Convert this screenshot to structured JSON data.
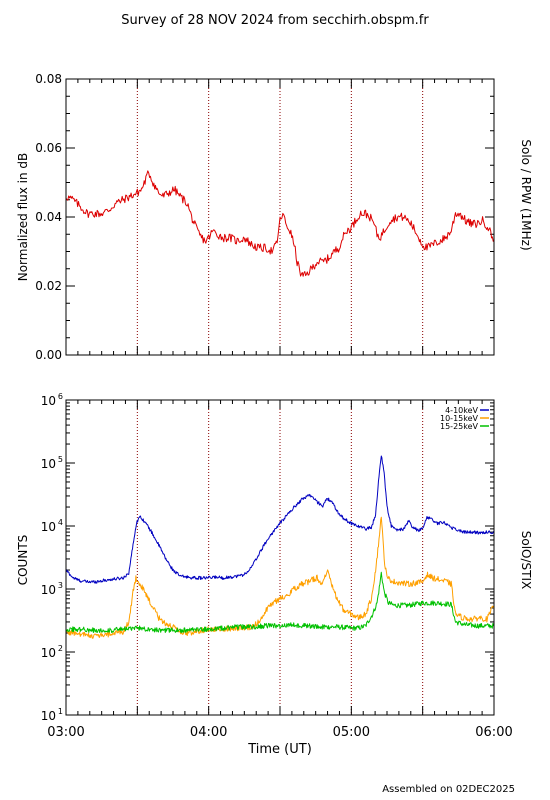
{
  "page": {
    "title": "Survey of 28 NOV 2024 from secchirh.obspm.fr",
    "footer": "Assembled on 02DEC2025"
  },
  "chart_data": [
    {
      "type": "line",
      "instrument_label": "Solo / RPW (1MHz)",
      "xlabel": "",
      "ylabel": "Normalized flux in dB",
      "x_unit": "hours UT",
      "xlim": [
        3.0,
        6.0
      ],
      "ylim": [
        0.0,
        0.08
      ],
      "yticks": [
        0.0,
        0.02,
        0.04,
        0.06,
        0.08
      ],
      "ytick_labels": [
        "0.00",
        "0.02",
        "0.04",
        "0.06",
        "0.08"
      ],
      "vertical_dotted_lines": [
        3.5,
        4.0,
        4.5,
        5.0,
        5.5
      ],
      "series": [
        {
          "color": "#dd0000",
          "points": [
            [
              3.0,
              0.046
            ],
            [
              3.05,
              0.045
            ],
            [
              3.1,
              0.043
            ],
            [
              3.15,
              0.041
            ],
            [
              3.2,
              0.041
            ],
            [
              3.25,
              0.041
            ],
            [
              3.3,
              0.042
            ],
            [
              3.35,
              0.044
            ],
            [
              3.4,
              0.045
            ],
            [
              3.45,
              0.046
            ],
            [
              3.5,
              0.047
            ],
            [
              3.53,
              0.048
            ],
            [
              3.56,
              0.051
            ],
            [
              3.58,
              0.053
            ],
            [
              3.61,
              0.05
            ],
            [
              3.65,
              0.047
            ],
            [
              3.68,
              0.046
            ],
            [
              3.72,
              0.047
            ],
            [
              3.76,
              0.048
            ],
            [
              3.8,
              0.046
            ],
            [
              3.85,
              0.044
            ],
            [
              3.88,
              0.04
            ],
            [
              3.92,
              0.036
            ],
            [
              3.95,
              0.034
            ],
            [
              3.98,
              0.033
            ],
            [
              4.0,
              0.034
            ],
            [
              4.03,
              0.036
            ],
            [
              4.06,
              0.035
            ],
            [
              4.1,
              0.034
            ],
            [
              4.15,
              0.034
            ],
            [
              4.2,
              0.033
            ],
            [
              4.25,
              0.034
            ],
            [
              4.3,
              0.032
            ],
            [
              4.35,
              0.031
            ],
            [
              4.4,
              0.031
            ],
            [
              4.45,
              0.03
            ],
            [
              4.48,
              0.033
            ],
            [
              4.5,
              0.039
            ],
            [
              4.52,
              0.041
            ],
            [
              4.54,
              0.038
            ],
            [
              4.57,
              0.036
            ],
            [
              4.6,
              0.032
            ],
            [
              4.62,
              0.027
            ],
            [
              4.65,
              0.023
            ],
            [
              4.68,
              0.023
            ],
            [
              4.72,
              0.025
            ],
            [
              4.76,
              0.027
            ],
            [
              4.8,
              0.027
            ],
            [
              4.84,
              0.028
            ],
            [
              4.88,
              0.03
            ],
            [
              4.91,
              0.031
            ],
            [
              4.94,
              0.034
            ],
            [
              4.97,
              0.036
            ],
            [
              5.0,
              0.037
            ],
            [
              5.03,
              0.039
            ],
            [
              5.06,
              0.041
            ],
            [
              5.1,
              0.041
            ],
            [
              5.13,
              0.04
            ],
            [
              5.16,
              0.038
            ],
            [
              5.18,
              0.035
            ],
            [
              5.2,
              0.034
            ],
            [
              5.23,
              0.036
            ],
            [
              5.27,
              0.039
            ],
            [
              5.32,
              0.04
            ],
            [
              5.37,
              0.04
            ],
            [
              5.42,
              0.038
            ],
            [
              5.46,
              0.035
            ],
            [
              5.5,
              0.032
            ],
            [
              5.53,
              0.031
            ],
            [
              5.57,
              0.032
            ],
            [
              5.62,
              0.033
            ],
            [
              5.66,
              0.034
            ],
            [
              5.7,
              0.036
            ],
            [
              5.73,
              0.041
            ],
            [
              5.76,
              0.041
            ],
            [
              5.8,
              0.039
            ],
            [
              5.84,
              0.038
            ],
            [
              5.88,
              0.038
            ],
            [
              5.92,
              0.039
            ],
            [
              5.96,
              0.037
            ],
            [
              6.0,
              0.033
            ]
          ]
        }
      ]
    },
    {
      "type": "line",
      "instrument_label": "SolO/STIX",
      "xlabel": "Time (UT)",
      "ylabel": "COUNTS",
      "x_unit": "hours UT",
      "xlim": [
        3.0,
        6.0
      ],
      "ylim": [
        10,
        1000000
      ],
      "yscale": "log",
      "ytick_labels": [
        {
          "base": "10",
          "exp": "1"
        },
        {
          "base": "10",
          "exp": "2"
        },
        {
          "base": "10",
          "exp": "3"
        },
        {
          "base": "10",
          "exp": "4"
        },
        {
          "base": "10",
          "exp": "5"
        },
        {
          "base": "10",
          "exp": "6"
        }
      ],
      "xticks": [
        3.0,
        4.0,
        5.0,
        6.0
      ],
      "xtick_labels": [
        "03:00",
        "04:00",
        "05:00",
        "06:00"
      ],
      "vertical_dotted_lines": [
        3.5,
        4.0,
        4.5,
        5.0,
        5.5
      ],
      "legend_position": "top-right",
      "series": [
        {
          "name": "4-10keV",
          "color": "#0000c0",
          "points": [
            [
              3.0,
              2000
            ],
            [
              3.05,
              1500
            ],
            [
              3.1,
              1350
            ],
            [
              3.15,
              1300
            ],
            [
              3.2,
              1300
            ],
            [
              3.25,
              1350
            ],
            [
              3.3,
              1400
            ],
            [
              3.35,
              1450
            ],
            [
              3.4,
              1500
            ],
            [
              3.44,
              1800
            ],
            [
              3.47,
              5000
            ],
            [
              3.49,
              10000
            ],
            [
              3.51,
              14000
            ],
            [
              3.53,
              13500
            ],
            [
              3.56,
              11000
            ],
            [
              3.6,
              8000
            ],
            [
              3.65,
              5000
            ],
            [
              3.7,
              3000
            ],
            [
              3.75,
              2000
            ],
            [
              3.8,
              1600
            ],
            [
              3.85,
              1550
            ],
            [
              3.9,
              1500
            ],
            [
              3.95,
              1500
            ],
            [
              4.0,
              1500
            ],
            [
              4.05,
              1550
            ],
            [
              4.1,
              1500
            ],
            [
              4.15,
              1550
            ],
            [
              4.2,
              1600
            ],
            [
              4.25,
              1700
            ],
            [
              4.3,
              2200
            ],
            [
              4.35,
              3500
            ],
            [
              4.4,
              5500
            ],
            [
              4.45,
              8000
            ],
            [
              4.5,
              11000
            ],
            [
              4.55,
              15000
            ],
            [
              4.6,
              20000
            ],
            [
              4.65,
              26000
            ],
            [
              4.7,
              31000
            ],
            [
              4.72,
              30000
            ],
            [
              4.76,
              24000
            ],
            [
              4.8,
              21000
            ],
            [
              4.83,
              27000
            ],
            [
              4.86,
              25000
            ],
            [
              4.9,
              17000
            ],
            [
              4.95,
              13000
            ],
            [
              5.0,
              11000
            ],
            [
              5.05,
              10000
            ],
            [
              5.1,
              9000
            ],
            [
              5.14,
              9500
            ],
            [
              5.17,
              15000
            ],
            [
              5.19,
              50000
            ],
            [
              5.21,
              135000
            ],
            [
              5.23,
              70000
            ],
            [
              5.25,
              20000
            ],
            [
              5.28,
              10000
            ],
            [
              5.32,
              8500
            ],
            [
              5.37,
              9000
            ],
            [
              5.4,
              12000
            ],
            [
              5.43,
              9500
            ],
            [
              5.47,
              8500
            ],
            [
              5.5,
              9000
            ],
            [
              5.53,
              14000
            ],
            [
              5.56,
              13000
            ],
            [
              5.6,
              11000
            ],
            [
              5.65,
              11500
            ],
            [
              5.7,
              9500
            ],
            [
              5.75,
              8500
            ],
            [
              5.8,
              8000
            ],
            [
              5.85,
              8000
            ],
            [
              5.9,
              7800
            ],
            [
              5.95,
              8000
            ],
            [
              6.0,
              8000
            ]
          ]
        },
        {
          "name": "10-15keV",
          "color": "#ffa000",
          "points": [
            [
              3.0,
              210
            ],
            [
              3.05,
              200
            ],
            [
              3.1,
              190
            ],
            [
              3.15,
              185
            ],
            [
              3.2,
              180
            ],
            [
              3.25,
              185
            ],
            [
              3.3,
              190
            ],
            [
              3.35,
              200
            ],
            [
              3.4,
              210
            ],
            [
              3.44,
              300
            ],
            [
              3.47,
              900
            ],
            [
              3.49,
              1500
            ],
            [
              3.51,
              1300
            ],
            [
              3.55,
              900
            ],
            [
              3.6,
              550
            ],
            [
              3.65,
              350
            ],
            [
              3.7,
              280
            ],
            [
              3.75,
              250
            ],
            [
              3.8,
              200
            ],
            [
              3.85,
              200
            ],
            [
              3.9,
              210
            ],
            [
              3.95,
              220
            ],
            [
              4.0,
              230
            ],
            [
              4.1,
              230
            ],
            [
              4.2,
              240
            ],
            [
              4.3,
              250
            ],
            [
              4.35,
              300
            ],
            [
              4.4,
              450
            ],
            [
              4.45,
              600
            ],
            [
              4.5,
              700
            ],
            [
              4.55,
              800
            ],
            [
              4.6,
              1000
            ],
            [
              4.65,
              1200
            ],
            [
              4.7,
              1300
            ],
            [
              4.72,
              1400
            ],
            [
              4.76,
              1500
            ],
            [
              4.8,
              1200
            ],
            [
              4.83,
              2000
            ],
            [
              4.86,
              1200
            ],
            [
              4.9,
              700
            ],
            [
              4.95,
              450
            ],
            [
              5.0,
              400
            ],
            [
              5.05,
              350
            ],
            [
              5.1,
              400
            ],
            [
              5.14,
              700
            ],
            [
              5.17,
              2000
            ],
            [
              5.19,
              5000
            ],
            [
              5.21,
              15000
            ],
            [
              5.23,
              3000
            ],
            [
              5.25,
              1500
            ],
            [
              5.3,
              1300
            ],
            [
              5.4,
              1200
            ],
            [
              5.5,
              1300
            ],
            [
              5.53,
              1700
            ],
            [
              5.57,
              1500
            ],
            [
              5.62,
              1400
            ],
            [
              5.67,
              1300
            ],
            [
              5.7,
              1200
            ],
            [
              5.73,
              400
            ],
            [
              5.78,
              350
            ],
            [
              5.85,
              330
            ],
            [
              5.9,
              350
            ],
            [
              5.95,
              330
            ],
            [
              6.0,
              550
            ]
          ]
        },
        {
          "name": "15-25keV",
          "color": "#00c000",
          "points": [
            [
              3.0,
              230
            ],
            [
              3.1,
              230
            ],
            [
              3.2,
              220
            ],
            [
              3.3,
              220
            ],
            [
              3.4,
              230
            ],
            [
              3.5,
              240
            ],
            [
              3.6,
              230
            ],
            [
              3.7,
              220
            ],
            [
              3.8,
              220
            ],
            [
              3.9,
              225
            ],
            [
              4.0,
              230
            ],
            [
              4.1,
              240
            ],
            [
              4.2,
              250
            ],
            [
              4.3,
              250
            ],
            [
              4.4,
              260
            ],
            [
              4.5,
              260
            ],
            [
              4.6,
              270
            ],
            [
              4.7,
              260
            ],
            [
              4.8,
              250
            ],
            [
              4.9,
              250
            ],
            [
              5.0,
              240
            ],
            [
              5.05,
              240
            ],
            [
              5.1,
              260
            ],
            [
              5.15,
              400
            ],
            [
              5.18,
              600
            ],
            [
              5.2,
              1200
            ],
            [
              5.21,
              1800
            ],
            [
              5.23,
              900
            ],
            [
              5.26,
              600
            ],
            [
              5.3,
              550
            ],
            [
              5.4,
              550
            ],
            [
              5.5,
              600
            ],
            [
              5.6,
              600
            ],
            [
              5.7,
              570
            ],
            [
              5.73,
              300
            ],
            [
              5.8,
              270
            ],
            [
              5.9,
              260
            ],
            [
              6.0,
              260
            ]
          ]
        }
      ]
    }
  ]
}
